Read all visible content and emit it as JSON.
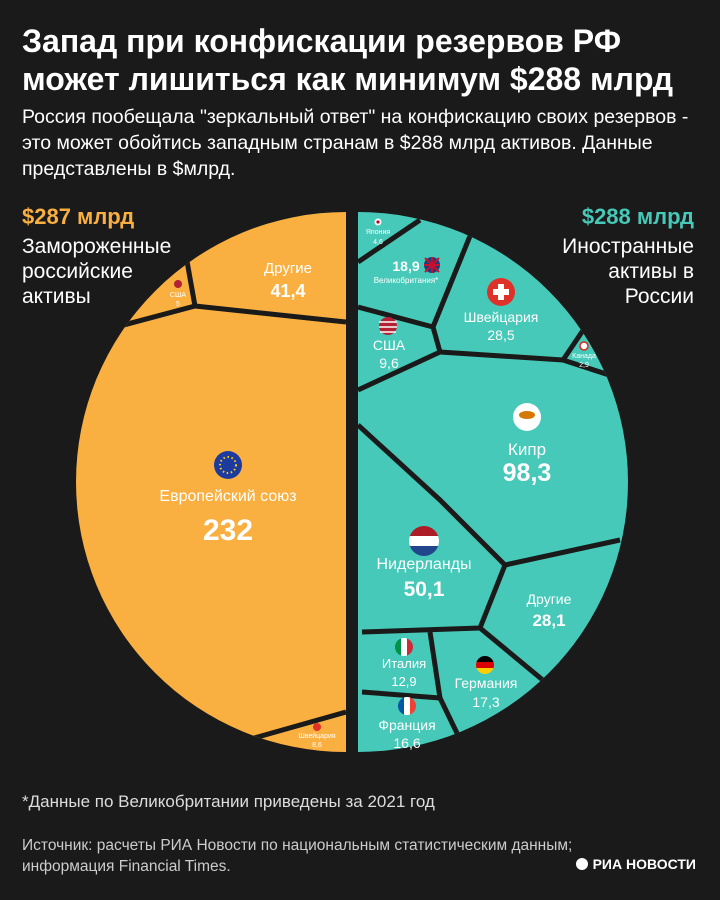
{
  "title": "Запад при конфискации резервов РФ может лишиться как минимум $288 млрд",
  "subtitle": "Россия пообещала \"зеркальный ответ\" на конфискацию своих резервов - это может обойтись западным странам в $288 млрд активов. Данные представлены в $млрд.",
  "left": {
    "total": "$287 млрд",
    "desc": "Замороженные российские активы"
  },
  "right": {
    "total": "$288 млрд",
    "desc": "Иностранные активы в России"
  },
  "note": "*Данные по Великобритании приведены за 2021 год",
  "source": "Источник: расчеты РИА Новости по национальным статистическим данным; информация Financial Times.",
  "logo": "РИА НОВОСТИ",
  "colors": {
    "left": "#f9b041",
    "right": "#46c9b8",
    "background": "#1b1a1a"
  },
  "chart_data": {
    "type": "voronoi-treemap",
    "unit": "$млрд",
    "groups": [
      {
        "name": "Замороженные российские активы",
        "total": "$287 млрд",
        "cells": [
          {
            "label": "Европейский союз",
            "value": 232,
            "display": "232"
          },
          {
            "label": "Другие",
            "value": 41.4,
            "display": "41,4"
          },
          {
            "label": "Швейцария",
            "value": 8.6,
            "display": "8,6"
          },
          {
            "label": "США",
            "value": 5,
            "display": "5"
          }
        ]
      },
      {
        "name": "Иностранные активы в России",
        "total": "$288 млрд",
        "cells": [
          {
            "label": "Кипр",
            "value": 98.3,
            "display": "98,3"
          },
          {
            "label": "Нидерланды",
            "value": 50.1,
            "display": "50,1"
          },
          {
            "label": "Швейцария",
            "value": 28.5,
            "display": "28,5"
          },
          {
            "label": "Другие",
            "value": 28.1,
            "display": "28,1"
          },
          {
            "label": "Великобритания*",
            "value": 18.9,
            "display": "18,9"
          },
          {
            "label": "Германия",
            "value": 17.3,
            "display": "17,3"
          },
          {
            "label": "Франция",
            "value": 16.6,
            "display": "16,6"
          },
          {
            "label": "Италия",
            "value": 12.9,
            "display": "12,9"
          },
          {
            "label": "США",
            "value": 9.6,
            "display": "9,6"
          },
          {
            "label": "Япония",
            "value": 4.6,
            "display": "4,6"
          },
          {
            "label": "Канада",
            "value": 2.9,
            "display": "2,9"
          }
        ]
      }
    ]
  }
}
